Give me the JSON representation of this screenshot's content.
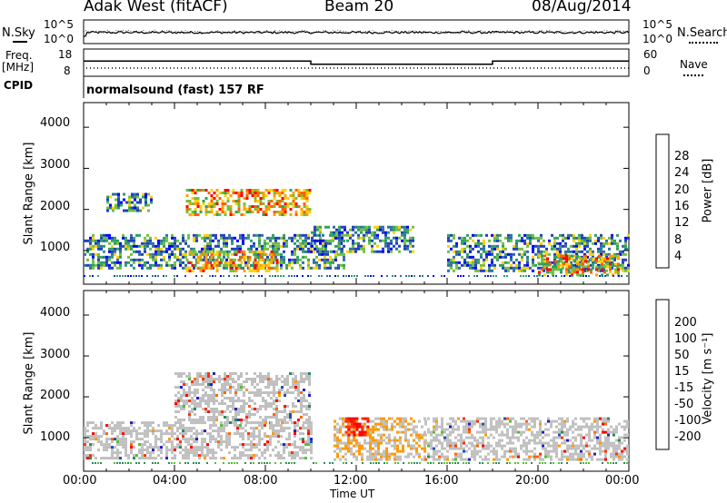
{
  "header": {
    "station": "Adak West (fitACF)",
    "beam": "Beam 20",
    "date": "08/Aug/2014"
  },
  "time_axis": {
    "title": "Time UT",
    "ticks": [
      "00:00",
      "04:00",
      "08:00",
      "12:00",
      "16:00",
      "20:00",
      "00:00"
    ]
  },
  "noise_panel": {
    "left_label": "N.Sky",
    "left_ticks": [
      "10^5",
      "10^0"
    ],
    "right_label": "N.Search",
    "right_ticks": [
      "10^5",
      "10^0"
    ]
  },
  "freq_panel": {
    "left_label_line1": "Freq.",
    "left_label_line2": "[MHz]",
    "left_ticks": [
      "18",
      "8"
    ],
    "right_label": "Nave",
    "right_ticks": [
      "60",
      "0"
    ]
  },
  "cpid_panel": {
    "label": "CPID",
    "text": "normalsound (fast) 157 RF"
  },
  "power_panel": {
    "ylabel": "Slant Range [km]",
    "yticks": [
      "4000",
      "3000",
      "2000",
      "1000"
    ],
    "colorbar_label": "Power [dB]",
    "colorbar_ticks": [
      "28",
      "24",
      "20",
      "16",
      "12",
      "8",
      "4"
    ],
    "colors": [
      "#0000ff",
      "#2040c0",
      "#3070a0",
      "#30a060",
      "#70c040",
      "#ffd000",
      "#ffa000",
      "#ff6000",
      "#ff0000"
    ]
  },
  "velocity_panel": {
    "ylabel": "Slant Range [km]",
    "yticks": [
      "4000",
      "3000",
      "2000",
      "1000"
    ],
    "colorbar_label": "Velocity [m s⁻¹]",
    "colorbar_ticks": [
      "200",
      "100",
      "50",
      "15",
      "-15",
      "-50",
      "-100",
      "-200"
    ],
    "colors": [
      "#2020c0",
      "#2050b0",
      "#2a8a5a",
      "#50c030",
      "#c0c0c0",
      "#ff9900",
      "#ff6600",
      "#ff3300",
      "#ff0000"
    ]
  },
  "chart_data": {
    "type": "heatmap",
    "x_unit": "hours UT",
    "xlim": [
      0,
      24
    ],
    "y_unit": "km",
    "ylim": [
      180,
      4600
    ],
    "frequency_mhz": [
      {
        "start": 0,
        "end": 10,
        "value": 14
      },
      {
        "start": 10,
        "end": 18,
        "value": 12
      },
      {
        "start": 18,
        "end": 24,
        "value": 14
      }
    ],
    "power_echo_regions": [
      {
        "t0": 0.0,
        "t1": 11.5,
        "r0": 600,
        "r1": 1400,
        "level": "medium"
      },
      {
        "t0": 4.5,
        "t1": 8.5,
        "r0": 500,
        "r1": 1000,
        "level": "high"
      },
      {
        "t0": 1.0,
        "t1": 3.0,
        "r0": 2000,
        "r1": 2400,
        "level": "medium"
      },
      {
        "t0": 4.5,
        "t1": 10.0,
        "r0": 1900,
        "r1": 2500,
        "level": "high"
      },
      {
        "t0": 10.0,
        "t1": 14.5,
        "r0": 1000,
        "r1": 1600,
        "level": "medium"
      },
      {
        "t0": 16.0,
        "t1": 24.0,
        "r0": 500,
        "r1": 1400,
        "level": "medium"
      },
      {
        "t0": 20.0,
        "t1": 23.5,
        "r0": 400,
        "r1": 900,
        "level": "high"
      }
    ],
    "velocity_echo_regions": [
      {
        "t0": 0.0,
        "t1": 10.0,
        "r0": 500,
        "r1": 1400,
        "class": "-15 to 15"
      },
      {
        "t0": 4.0,
        "t1": 10.0,
        "r0": 1400,
        "r1": 2600,
        "class": "-15 to 15"
      },
      {
        "t0": 11.0,
        "t1": 15.0,
        "r0": 500,
        "r1": 1500,
        "class": "-50 to -100"
      },
      {
        "t0": 11.5,
        "t1": 12.5,
        "r0": 1100,
        "r1": 1500,
        "class": "-100 to -200"
      },
      {
        "t0": 15.0,
        "t1": 24.0,
        "r0": 500,
        "r1": 1500,
        "class": "-15 to 15"
      }
    ]
  }
}
